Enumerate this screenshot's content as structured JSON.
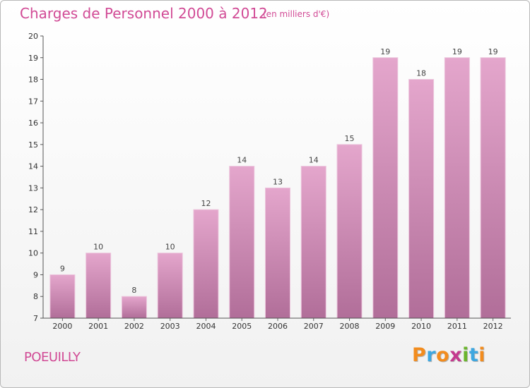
{
  "header": {
    "title": "Charges de Personnel 2000 à 2012",
    "unit": "(en milliers d'€)"
  },
  "footer": {
    "commune": "POEUILLY",
    "logo": "Proxiti"
  },
  "logo_colors": [
    "#f28c1e",
    "#3ea7e0",
    "#f28c1e",
    "#c43a8f",
    "#6bb52d",
    "#3ea7e0",
    "#f28c1e"
  ],
  "chart_data": {
    "type": "bar",
    "categories": [
      "2000",
      "2001",
      "2002",
      "2003",
      "2004",
      "2005",
      "2006",
      "2007",
      "2008",
      "2009",
      "2010",
      "2011",
      "2012"
    ],
    "values": [
      9,
      10,
      8,
      10,
      12,
      14,
      13,
      14,
      15,
      19,
      18,
      19,
      19
    ],
    "data_labels": [
      "9",
      "10",
      "8",
      "10",
      "12",
      "14",
      "13",
      "14",
      "15",
      "19",
      "18",
      "19",
      "19"
    ],
    "yticks": [
      7,
      8,
      9,
      10,
      11,
      12,
      13,
      14,
      15,
      16,
      17,
      18,
      19,
      20
    ],
    "ylim": [
      7,
      20
    ],
    "grid": false,
    "bar_color_top": "#e4a6cc",
    "bar_color_bottom": "#b16e99"
  }
}
